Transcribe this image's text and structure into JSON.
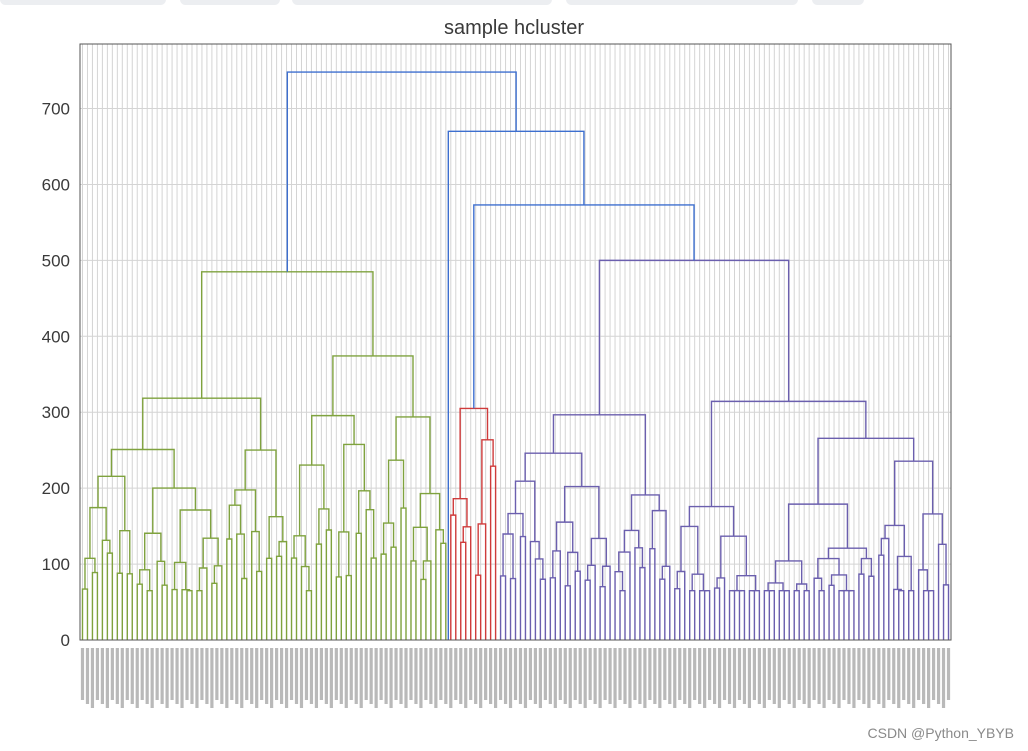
{
  "browser": {
    "tab_count": 5
  },
  "watermark": "CSDN @Python_YBYB",
  "chart_data": {
    "type": "dendrogram",
    "title": "sample hcluster",
    "xlabel": "",
    "ylabel": "",
    "ylim": [
      0,
      785
    ],
    "yticks": [
      0,
      100,
      200,
      300,
      400,
      500,
      600,
      700
    ],
    "grid": true,
    "leaf_count": 175,
    "colors": {
      "green": "#7fa23e",
      "red": "#cf3b3b",
      "purple": "#6b5fae",
      "blue": "#3d6fcf"
    },
    "top_level_merges": [
      {
        "name": "root",
        "height": 748,
        "color": "blue"
      },
      {
        "name": "red-and-purple",
        "height": 670,
        "color": "blue"
      },
      {
        "name": "red-plus-purple",
        "height": 573,
        "color": "blue"
      }
    ],
    "clusters": [
      {
        "name": "green",
        "color": "green",
        "leaves": 74,
        "merge_height": 485,
        "sub_heights": [
          272,
          367,
          256,
          336,
          228,
          302
        ]
      },
      {
        "name": "red",
        "color": "red",
        "leaves": 10,
        "merge_height": 305,
        "sub_heights": [
          298,
          193,
          245,
          218
        ]
      },
      {
        "name": "purple",
        "color": "purple",
        "leaves": 91,
        "merge_height": 500,
        "sub_heights": [
          432,
          445,
          406,
          318,
          300,
          265,
          248,
          225,
          303,
          290
        ]
      }
    ]
  }
}
